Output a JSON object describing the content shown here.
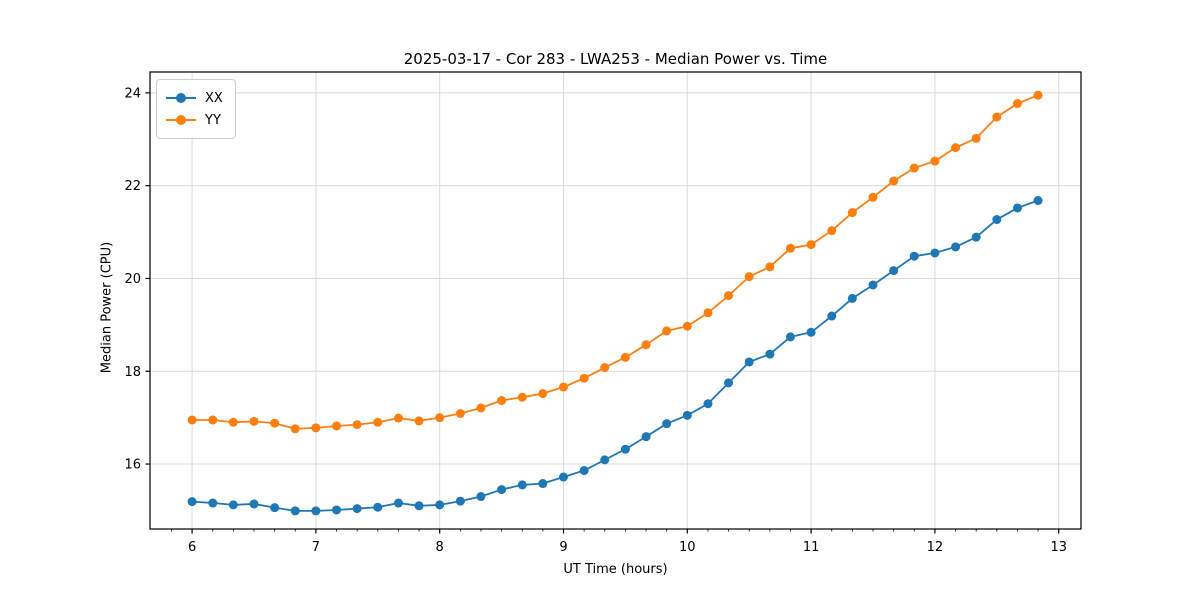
{
  "chart_data": {
    "type": "line",
    "title": "2025-03-17 - Cor 283 - LWA253 - Median Power vs. Time",
    "xlabel": "UT Time (hours)",
    "ylabel": "Median Power (CPU)",
    "xlim": [
      5.66,
      13.18
    ],
    "ylim": [
      14.6,
      24.45
    ],
    "x_major_ticks": [
      6,
      7,
      8,
      9,
      10,
      11,
      12,
      13
    ],
    "x_minor_step_hours": 0.1667,
    "y_major_ticks": [
      16,
      18,
      20,
      22,
      24
    ],
    "grid": true,
    "grid_color": "#dcdcdc",
    "legend_position": "upper-left",
    "marker": "circle",
    "x": [
      6.0,
      6.167,
      6.333,
      6.5,
      6.667,
      6.833,
      7.0,
      7.167,
      7.333,
      7.5,
      7.667,
      7.833,
      8.0,
      8.167,
      8.333,
      8.5,
      8.667,
      8.833,
      9.0,
      9.167,
      9.333,
      9.5,
      9.667,
      9.833,
      10.0,
      10.167,
      10.333,
      10.5,
      10.667,
      10.833,
      11.0,
      11.167,
      11.333,
      11.5,
      11.667,
      11.833,
      12.0,
      12.167,
      12.333,
      12.5,
      12.667,
      12.833
    ],
    "series": [
      {
        "name": "XX",
        "color": "#1f77b4",
        "values": [
          15.19,
          15.16,
          15.12,
          15.14,
          15.06,
          14.99,
          14.99,
          15.01,
          15.04,
          15.07,
          15.16,
          15.1,
          15.12,
          15.2,
          15.3,
          15.45,
          15.55,
          15.58,
          15.72,
          15.86,
          16.09,
          16.32,
          16.59,
          16.87,
          17.05,
          17.3,
          17.75,
          18.2,
          18.37,
          18.74,
          18.84,
          19.19,
          19.57,
          19.86,
          20.17,
          20.48,
          20.55,
          20.68,
          20.89,
          21.27,
          21.52,
          21.68
        ]
      },
      {
        "name": "YY",
        "color": "#ff7f0e",
        "values": [
          16.95,
          16.95,
          16.9,
          16.92,
          16.88,
          16.76,
          16.78,
          16.82,
          16.85,
          16.9,
          16.99,
          16.93,
          17.0,
          17.09,
          17.21,
          17.37,
          17.44,
          17.52,
          17.66,
          17.85,
          18.08,
          18.3,
          18.57,
          18.87,
          18.97,
          19.26,
          19.63,
          20.04,
          20.25,
          20.65,
          20.73,
          21.03,
          21.42,
          21.75,
          22.1,
          22.38,
          22.53,
          22.82,
          23.02,
          23.48,
          23.77,
          23.95
        ]
      }
    ]
  }
}
